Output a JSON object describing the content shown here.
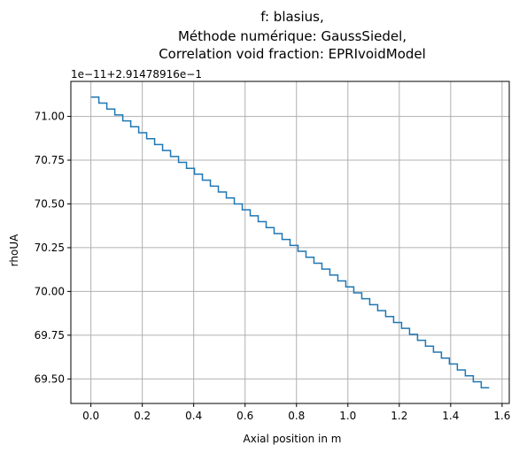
{
  "chart_data": {
    "type": "line",
    "step": true,
    "title_lines": [
      "f: blasius,",
      "Méthode numérique: GaussSiedel,",
      "Correlation void fraction: EPRIvoidModel"
    ],
    "xlabel": "Axial position in m",
    "ylabel": "rhoUA",
    "y_offset_label": "1e−11+2.91478916e−1",
    "xlim": [
      -0.078,
      1.628
    ],
    "ylim": [
      69.36,
      71.2
    ],
    "x_ticks": [
      0.0,
      0.2,
      0.4,
      0.6,
      0.8,
      1.0,
      1.2,
      1.4,
      1.6
    ],
    "x_tick_labels": [
      "0.0",
      "0.2",
      "0.4",
      "0.6",
      "0.8",
      "1.0",
      "1.2",
      "1.4",
      "1.6"
    ],
    "y_ticks": [
      69.5,
      69.75,
      70.0,
      70.25,
      70.5,
      70.75,
      71.0
    ],
    "y_tick_labels": [
      "69.50",
      "69.75",
      "70.00",
      "70.25",
      "70.50",
      "70.75",
      "71.00"
    ],
    "grid": true,
    "series": [
      {
        "color": "#1f77b4",
        "x_start": 0.0,
        "x_end": 1.55,
        "step_count": 50,
        "y_start": 71.11,
        "y_end": 69.45
      }
    ]
  }
}
